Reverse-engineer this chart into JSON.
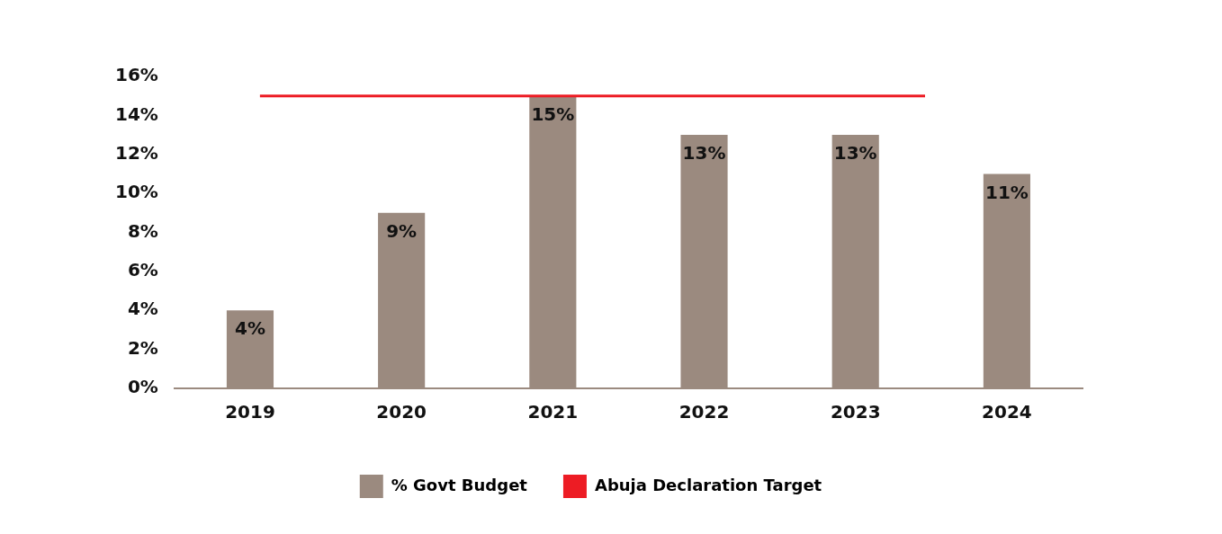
{
  "chart_data": {
    "type": "bar",
    "categories": [
      "2019",
      "2020",
      "2021",
      "2022",
      "2023",
      "2024"
    ],
    "series": [
      {
        "name": "% Govt Budget",
        "color": "#9b8a7f",
        "values": [
          4,
          9,
          15,
          13,
          13,
          11
        ]
      }
    ],
    "value_labels": [
      "4%",
      "9%",
      "15%",
      "13%",
      "13%",
      "11%"
    ],
    "ylim": [
      0,
      16
    ],
    "yticks": [
      {
        "value": 0,
        "label": "0%"
      },
      {
        "value": 2,
        "label": "2%"
      },
      {
        "value": 4,
        "label": "4%"
      },
      {
        "value": 6,
        "label": "6%"
      },
      {
        "value": 8,
        "label": "8%"
      },
      {
        "value": 10,
        "label": "10%"
      },
      {
        "value": 12,
        "label": "12%"
      },
      {
        "value": 14,
        "label": "14%"
      },
      {
        "value": 16,
        "label": "16%"
      }
    ],
    "ref_lines": [
      {
        "axis": "y",
        "value": 15,
        "label": "Abuja Declaration Target",
        "color": "#ed1c24"
      }
    ],
    "grid": false,
    "legend": "bottom"
  }
}
